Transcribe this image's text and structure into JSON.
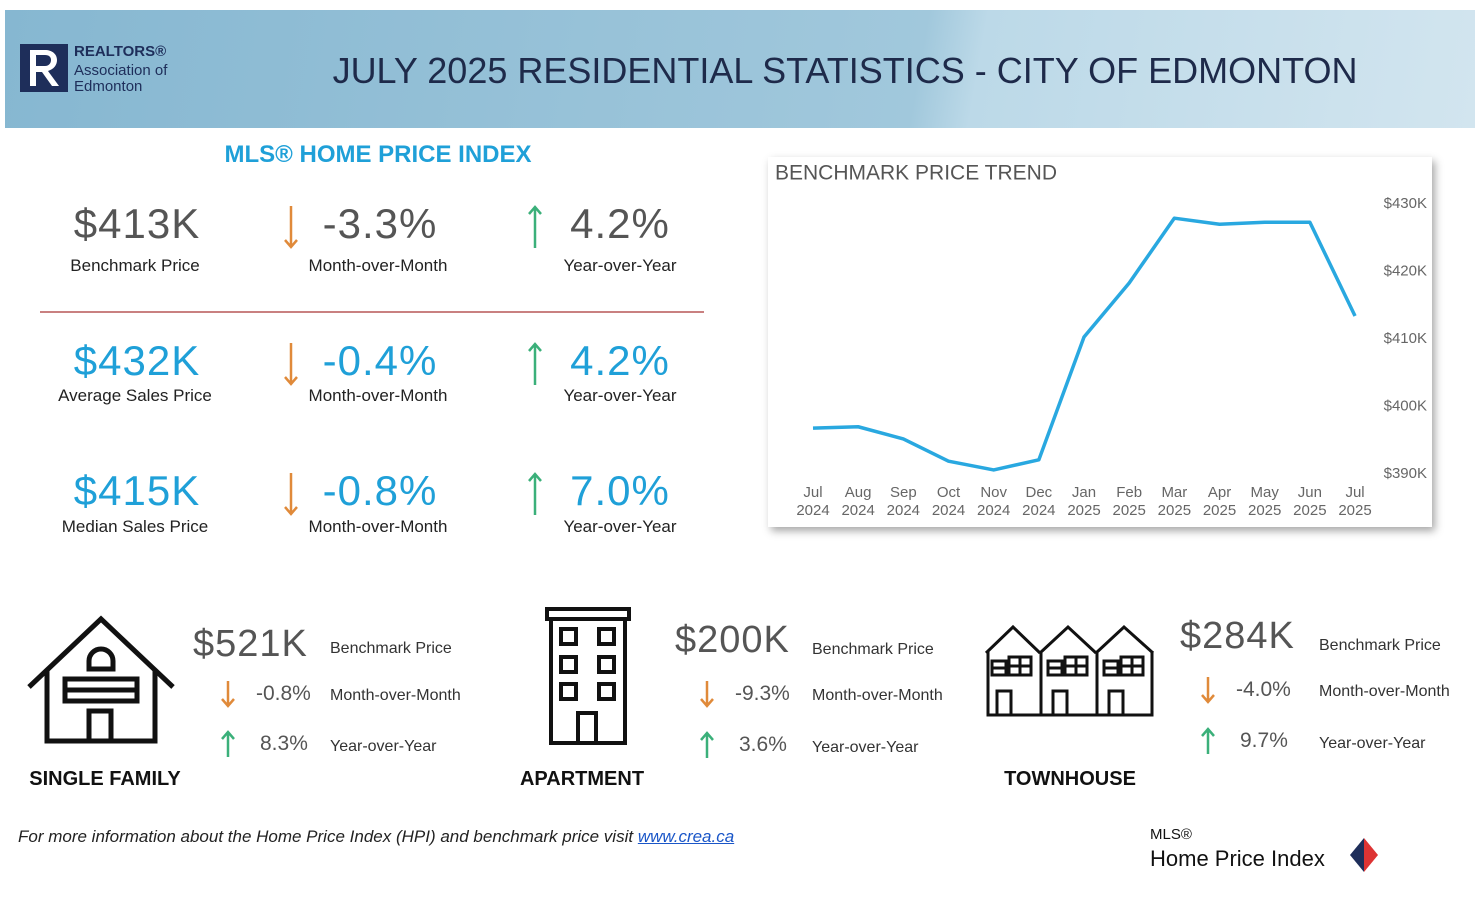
{
  "header": {
    "logo": {
      "line1": "REALTORS®",
      "line2": "Association of",
      "line3": "Edmonton"
    },
    "title": "JULY 2025 RESIDENTIAL STATISTICS - CITY OF EDMONTON"
  },
  "hpi": {
    "title": "MLS® HOME PRICE INDEX",
    "rows": [
      {
        "value": "$413K",
        "label": "Benchmark Price",
        "mom": "-3.3%",
        "mom_label": "Month-over-Month",
        "yoy": "4.2%",
        "yoy_label": "Year-over-Year"
      },
      {
        "value": "$432K",
        "label": "Average Sales Price",
        "mom": "-0.4%",
        "mom_label": "Month-over-Month",
        "yoy": "4.2%",
        "yoy_label": "Year-over-Year"
      },
      {
        "value": "$415K",
        "label": "Median Sales Price",
        "mom": "-0.8%",
        "mom_label": "Month-over-Month",
        "yoy": "7.0%",
        "yoy_label": "Year-over-Year"
      }
    ]
  },
  "chart_data": {
    "type": "line",
    "title": "BENCHMARK PRICE TREND",
    "categories": [
      "Jul 2024",
      "Aug 2024",
      "Sep 2024",
      "Oct 2024",
      "Nov 2024",
      "Dec 2024",
      "Jan 2025",
      "Feb 2025",
      "Mar 2025",
      "Apr 2025",
      "May 2025",
      "Jun 2025",
      "Jul 2025"
    ],
    "values": [
      396.8,
      397.0,
      395.2,
      391.9,
      390.6,
      392.1,
      410.3,
      418.3,
      427.9,
      427.0,
      427.3,
      427.3,
      413.4
    ],
    "color": "#29a8e0",
    "ylim": [
      388,
      432
    ],
    "yticks": [
      {
        "value": 390,
        "label": "$390K"
      },
      {
        "value": 400,
        "label": "$400K"
      },
      {
        "value": 410,
        "label": "$410K"
      },
      {
        "value": 420,
        "label": "$420K"
      },
      {
        "value": 430,
        "label": "$430K"
      }
    ],
    "grid": false
  },
  "property_types": [
    {
      "name": "SINGLE FAMILY",
      "value": "$521K",
      "value_label": "Benchmark Price",
      "mom": "-0.8%",
      "mom_label": "Month-over-Month",
      "yoy": "8.3%",
      "yoy_label": "Year-over-Year"
    },
    {
      "name": "APARTMENT",
      "value": "$200K",
      "value_label": "Benchmark Price",
      "mom": "-9.3%",
      "mom_label": "Month-over-Month",
      "yoy": "3.6%",
      "yoy_label": "Year-over-Year"
    },
    {
      "name": "TOWNHOUSE",
      "value": "$284K",
      "value_label": "Benchmark Price",
      "mom": "-4.0%",
      "mom_label": "Month-over-Month",
      "yoy": "9.7%",
      "yoy_label": "Year-over-Year"
    }
  ],
  "footer": {
    "text": "For more information about the Home Price Index (HPI) and benchmark price visit",
    "link": "www.crea.ca",
    "brand": {
      "line1": "MLS®",
      "line2": "Home Price Index"
    }
  }
}
